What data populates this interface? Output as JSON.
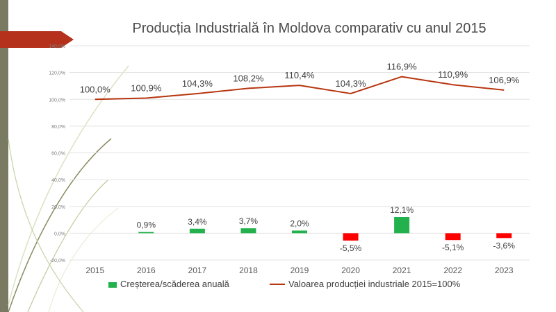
{
  "slide": {
    "colors": {
      "side_stripe": "#7a7a62",
      "ribbon": "#b5311c",
      "positive_bar": "#22b14c",
      "negative_bar": "#ff0000",
      "line": "#b7350f",
      "grid": "#e3e3e3",
      "text": "#404040"
    }
  },
  "chart_data": {
    "type": "bar+line",
    "title": "Producția Industrială în Moldova comparativ cu anul 2015",
    "categories": [
      "2015",
      "2016",
      "2017",
      "2018",
      "2019",
      "2020",
      "2021",
      "2022",
      "2023"
    ],
    "ylim": [
      -20,
      140
    ],
    "y_ticks": [
      "-20,0%",
      "0,0%",
      "20,0%",
      "40,0%",
      "60,0%",
      "80,0%",
      "100,0%",
      "120,0%",
      "140,0%"
    ],
    "grid": true,
    "legend_position": "bottom",
    "series": [
      {
        "name": "Creșterea/scăderea anuală",
        "type": "bar",
        "values": [
          null,
          0.9,
          3.4,
          3.7,
          2.0,
          -5.5,
          12.1,
          -5.1,
          -3.6
        ],
        "labels": [
          "",
          "0,9%",
          "3,4%",
          "3,7%",
          "2,0%",
          "-5,5%",
          "12,1%",
          "-5,1%",
          "-3,6%"
        ]
      },
      {
        "name": "Valoarea producției industriale 2015=100%",
        "type": "line",
        "values": [
          100.0,
          100.9,
          104.3,
          108.2,
          110.4,
          104.3,
          116.9,
          110.9,
          106.9
        ],
        "labels": [
          "100,0%",
          "100,9%",
          "104,3%",
          "108,2%",
          "110,4%",
          "104,3%",
          "116,9%",
          "110,9%",
          "106,9%"
        ]
      }
    ]
  }
}
